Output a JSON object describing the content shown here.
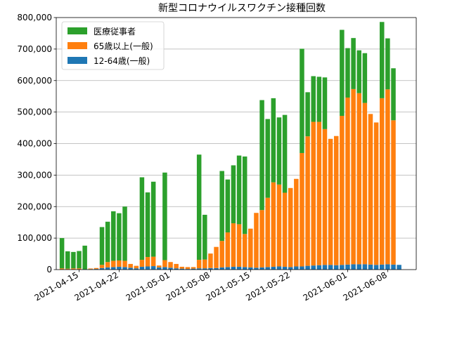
{
  "chart_data": {
    "type": "bar",
    "stacked": true,
    "title": "新型コロナウイルスワクチン接種回数",
    "xlabel": "",
    "ylabel": "",
    "ylim": [
      0,
      800000
    ],
    "yticks": [
      0,
      100000,
      200000,
      300000,
      400000,
      500000,
      600000,
      700000,
      800000
    ],
    "ytick_labels": [
      "0",
      "100,000",
      "200,000",
      "300,000",
      "400,000",
      "500,000",
      "600,000",
      "700,000",
      "800,000"
    ],
    "xlim": [
      "2021-04-11",
      "2021-06-13"
    ],
    "xticks": [
      "2021-04-15",
      "2021-04-22",
      "2021-05-01",
      "2021-05-08",
      "2021-05-15",
      "2021-05-22",
      "2021-06-01",
      "2021-06-08"
    ],
    "grid": "y",
    "legend_position": "top-left",
    "dates": [
      "2021-04-12",
      "2021-04-13",
      "2021-04-14",
      "2021-04-15",
      "2021-04-16",
      "2021-04-17",
      "2021-04-18",
      "2021-04-19",
      "2021-04-20",
      "2021-04-21",
      "2021-04-22",
      "2021-04-23",
      "2021-04-24",
      "2021-04-25",
      "2021-04-26",
      "2021-04-27",
      "2021-04-28",
      "2021-04-29",
      "2021-04-30",
      "2021-05-01",
      "2021-05-02",
      "2021-05-03",
      "2021-05-04",
      "2021-05-05",
      "2021-05-06",
      "2021-05-07",
      "2021-05-08",
      "2021-05-09",
      "2021-05-10",
      "2021-05-11",
      "2021-05-12",
      "2021-05-13",
      "2021-05-14",
      "2021-05-15",
      "2021-05-16",
      "2021-05-17",
      "2021-05-18",
      "2021-05-19",
      "2021-05-20",
      "2021-05-21",
      "2021-05-22",
      "2021-05-23",
      "2021-05-24",
      "2021-05-25",
      "2021-05-26",
      "2021-05-27",
      "2021-05-28",
      "2021-05-29",
      "2021-05-30",
      "2021-05-31",
      "2021-06-01",
      "2021-06-02",
      "2021-06-03",
      "2021-06-04",
      "2021-06-05",
      "2021-06-06",
      "2021-06-07",
      "2021-06-08",
      "2021-06-09",
      "2021-06-10"
    ],
    "series": [
      {
        "name": "12-64歳(一般)",
        "color": "#1f77b4",
        "values": [
          1000,
          1000,
          1000,
          1000,
          1000,
          1500,
          2000,
          5000,
          7000,
          8000,
          9000,
          8000,
          6000,
          4000,
          9000,
          10000,
          11000,
          7000,
          8000,
          6000,
          4000,
          3000,
          2000,
          3000,
          4000,
          4000,
          5000,
          5000,
          7000,
          8000,
          9000,
          9000,
          8000,
          7000,
          6000,
          7000,
          8000,
          9000,
          10000,
          9000,
          8000,
          10000,
          10000,
          12000,
          13000,
          14000,
          15000,
          15000,
          14000,
          15000,
          16000,
          17000,
          17000,
          17000,
          16000,
          15000,
          16000,
          17000,
          16000,
          15000
        ]
      },
      {
        "name": "65歳以上(一般)",
        "color": "#ff7f0e",
        "values": [
          3000,
          2000,
          3000,
          3000,
          0,
          2000,
          3000,
          10000,
          17000,
          20000,
          20000,
          20000,
          12000,
          8000,
          22000,
          30000,
          30000,
          6000,
          22000,
          18000,
          14000,
          6000,
          6000,
          5000,
          27000,
          28000,
          46000,
          67000,
          84000,
          110000,
          138000,
          135000,
          105000,
          123000,
          174000,
          182000,
          220000,
          268000,
          260000,
          235000,
          251000,
          278000,
          360000,
          411000,
          456000,
          455000,
          431000,
          400000,
          410000,
          473000,
          530000,
          556000,
          543000,
          512000,
          478000,
          452000,
          528000,
          555000,
          458000,
          0
        ]
      },
      {
        "name": "医療従事者",
        "color": "#2ca02c",
        "values": [
          96000,
          55000,
          52000,
          55000,
          75000,
          0,
          0,
          120000,
          128000,
          157000,
          150000,
          172000,
          0,
          0,
          262000,
          205000,
          238000,
          0,
          278000,
          0,
          0,
          0,
          0,
          0,
          334000,
          142000,
          0,
          0,
          222000,
          168000,
          184000,
          218000,
          246000,
          0,
          0,
          349000,
          250000,
          267000,
          213000,
          247000,
          0,
          0,
          331000,
          140000,
          145000,
          143000,
          164000,
          0,
          0,
          273000,
          157000,
          162000,
          136000,
          158000,
          0,
          0,
          242000,
          162000,
          165000,
          0
        ]
      }
    ]
  }
}
